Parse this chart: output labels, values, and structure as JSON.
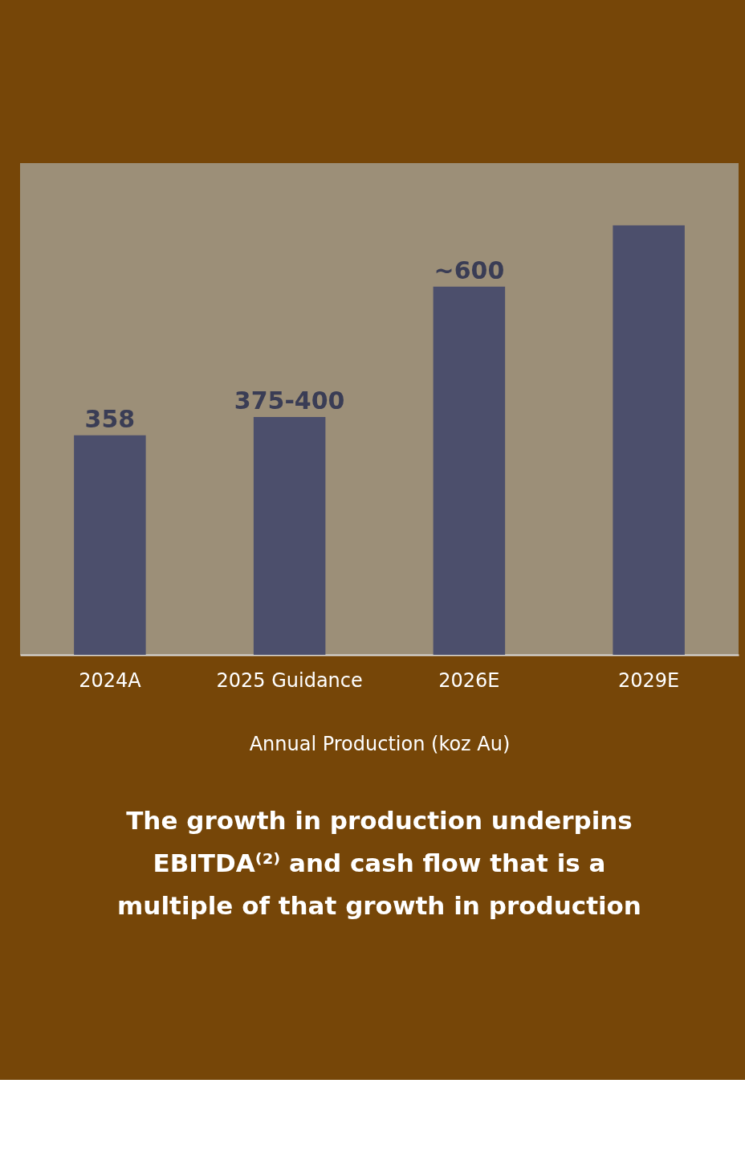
{
  "chart_data": {
    "type": "bar",
    "categories": [
      "2024A",
      "2025 Guidance",
      "2026E",
      "2029E"
    ],
    "values": [
      358,
      387.5,
      600,
      700
    ],
    "value_labels": [
      "358",
      "375-400",
      "~600",
      null
    ],
    "color": "#4c4f6c",
    "xlabel": "Annual Production (koz Au)",
    "annotations": [
      "The growth in production underpins EBITDA⁽²⁾ and cash flow that is a multiple of that growth in production"
    ],
    "grid": false
  }
}
